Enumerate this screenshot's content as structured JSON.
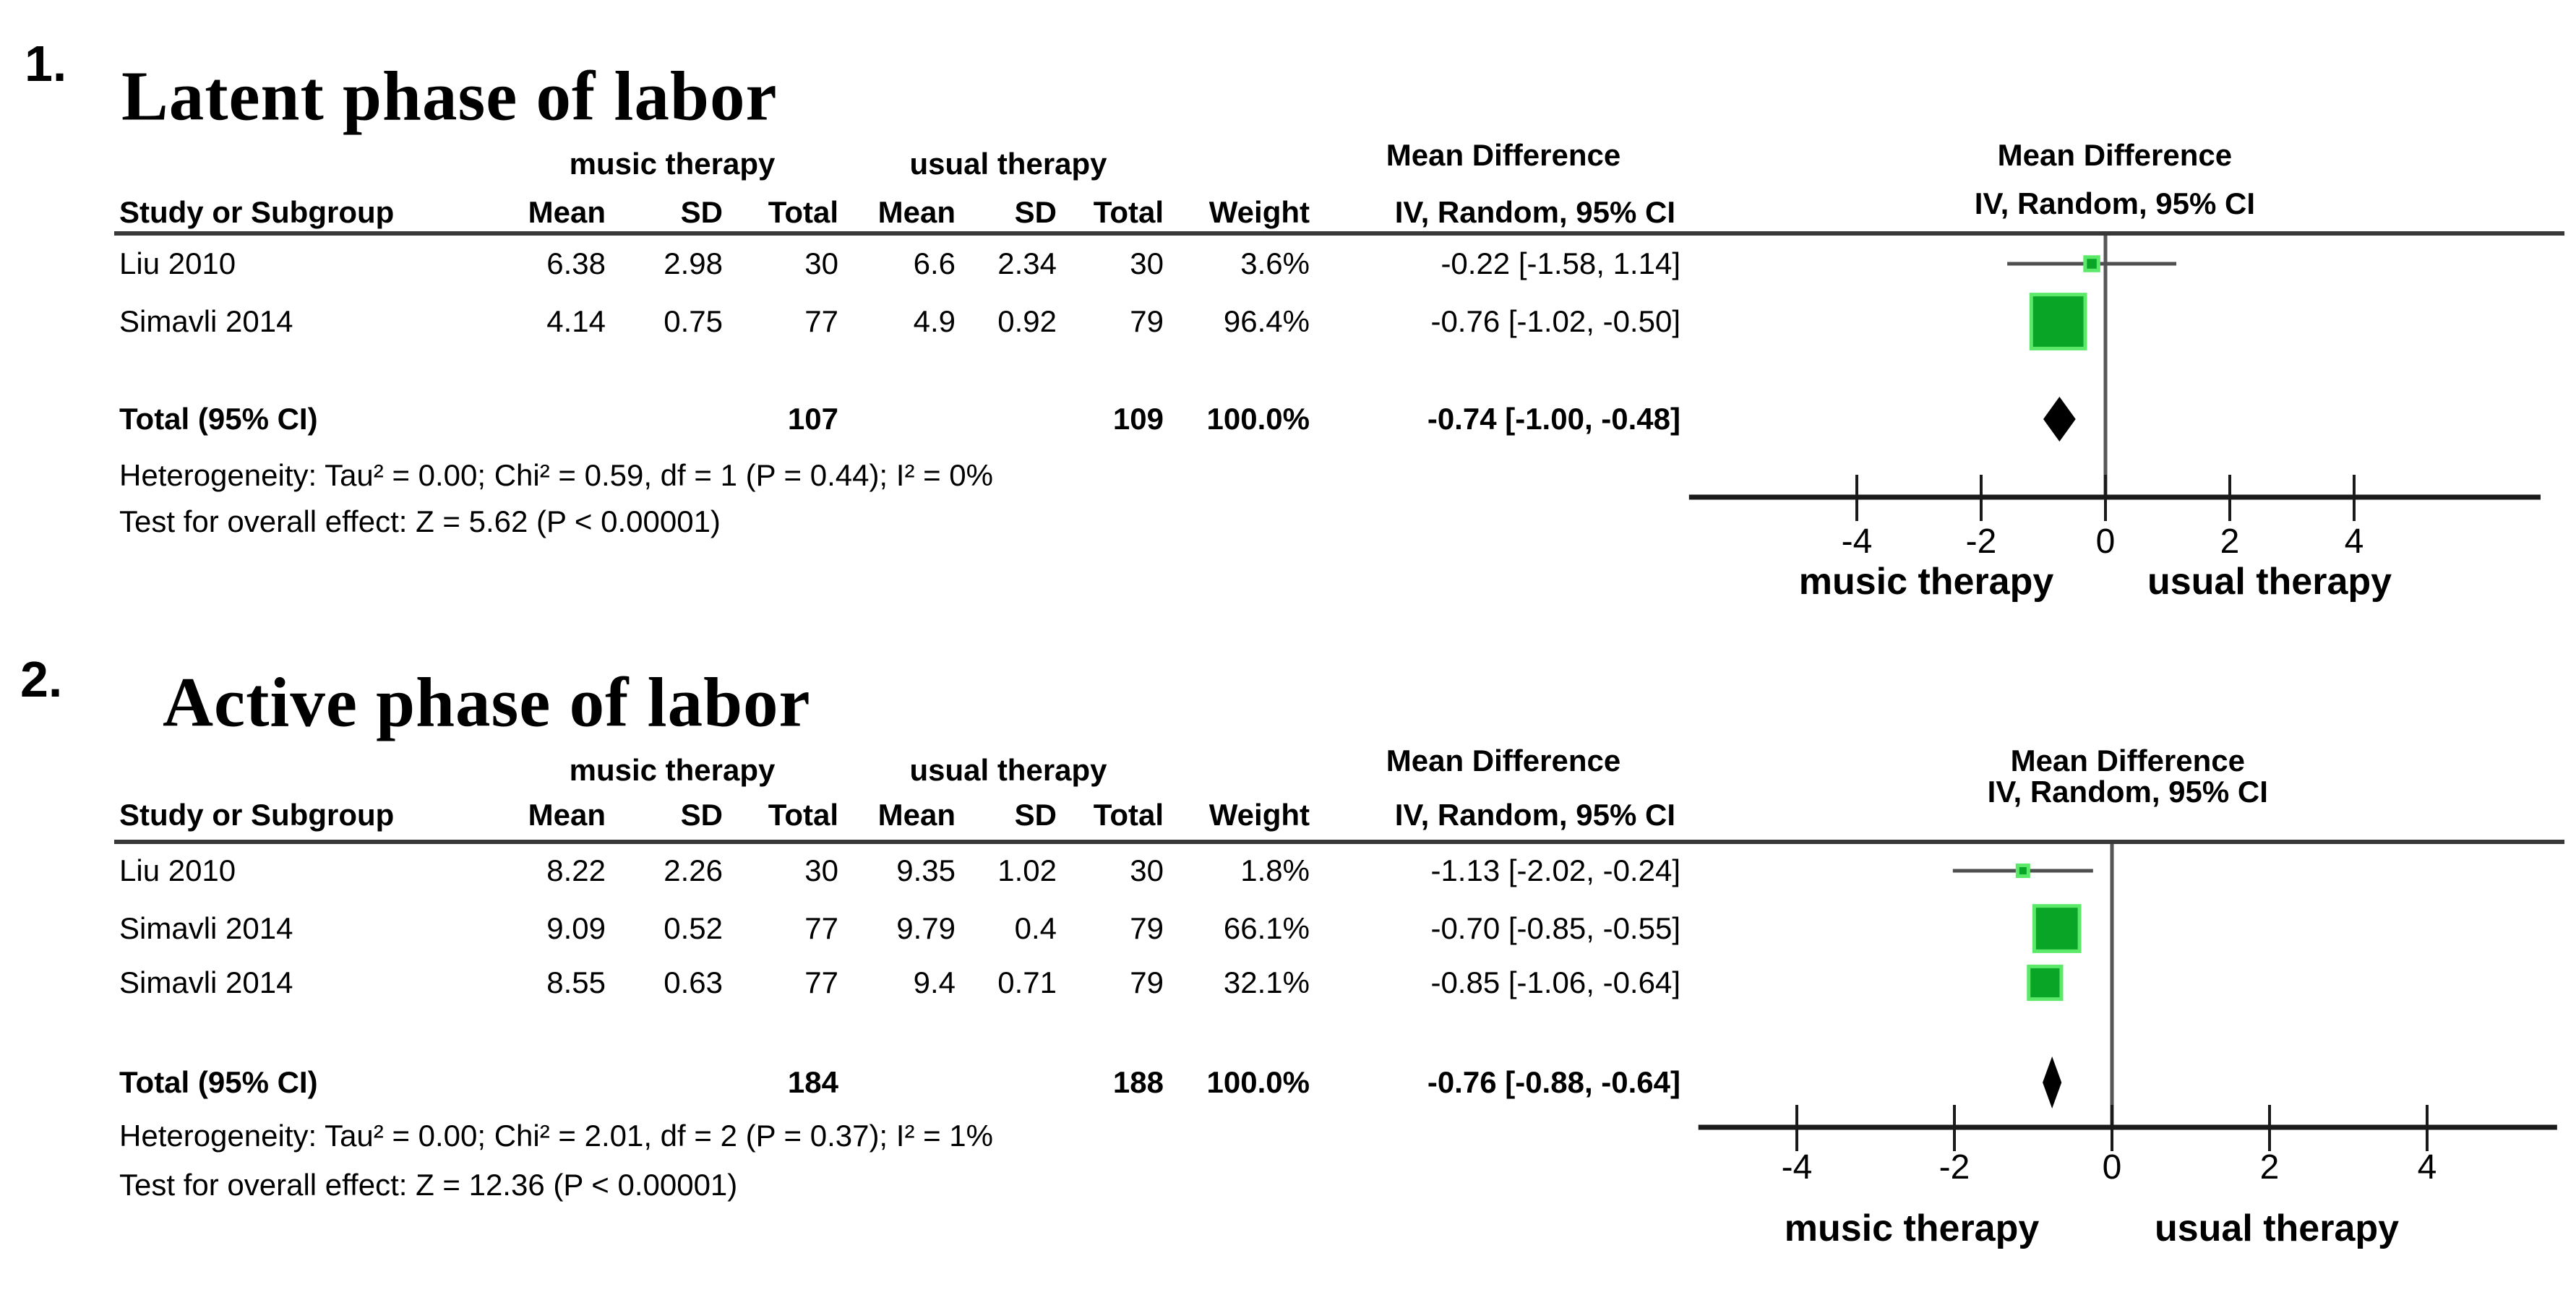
{
  "colors": {
    "background": "#ffffff",
    "text": "#000000",
    "marker_core": "#09a527",
    "marker_halo": "#5ce96a",
    "ci_line": "#4f4f4f",
    "axis_line": "#1a1a1a",
    "zero_line": "#565656",
    "separator": "#383838",
    "diamond": "#000000"
  },
  "chart_data": [
    {
      "type": "forest",
      "index_label": "1.",
      "title": "Latent phase of labor",
      "group_headers": {
        "experimental": "music therapy",
        "control": "usual therapy"
      },
      "effect_header": {
        "line1": "Mean Difference",
        "line2": "IV, Random, 95% CI"
      },
      "columns": {
        "study": "Study or Subgroup",
        "mean": "Mean",
        "sd": "SD",
        "total": "Total",
        "weight": "Weight",
        "ci": "IV, Random, 95% CI"
      },
      "studies": [
        {
          "study": "Liu 2010",
          "mean1": "6.38",
          "sd1": "2.98",
          "total1": "30",
          "mean2": "6.6",
          "sd2": "2.34",
          "total2": "30",
          "weight": "3.6%",
          "ci_text": "-0.22 [-1.58, 1.14]",
          "md": -0.22,
          "ci_low": -1.58,
          "ci_high": 1.14,
          "weight_pct": 3.6
        },
        {
          "study": "Simavli 2014",
          "mean1": "4.14",
          "sd1": "0.75",
          "total1": "77",
          "mean2": "4.9",
          "sd2": "0.92",
          "total2": "79",
          "weight": "96.4%",
          "ci_text": "-0.76 [-1.02, -0.50]",
          "md": -0.76,
          "ci_low": -1.02,
          "ci_high": -0.5,
          "weight_pct": 96.4
        }
      ],
      "total_row": {
        "label": "Total (95% CI)",
        "total1": "107",
        "total2": "109",
        "weight": "100.0%",
        "ci_text": "-0.74 [-1.00, -0.48]",
        "md": -0.74,
        "ci_low": -1.0,
        "ci_high": -0.48
      },
      "heterogeneity": "Heterogeneity: Tau² = 0.00; Chi² = 0.59, df = 1 (P = 0.44); I² = 0%",
      "overall_effect": "Test for overall effect: Z = 5.62 (P < 0.00001)",
      "axis": {
        "ticks": [
          -4,
          -2,
          0,
          2,
          4
        ],
        "xlim": [
          -6.7,
          7.0
        ],
        "label_left": "music therapy",
        "label_right": "usual therapy"
      }
    },
    {
      "type": "forest",
      "index_label": "2.",
      "title": "Active phase of labor",
      "group_headers": {
        "experimental": "music therapy",
        "control": "usual therapy"
      },
      "effect_header": {
        "line1": "Mean Difference",
        "line2": "IV, Random, 95% CI"
      },
      "columns": {
        "study": "Study or Subgroup",
        "mean": "Mean",
        "sd": "SD",
        "total": "Total",
        "weight": "Weight",
        "ci": "IV, Random, 95% CI"
      },
      "studies": [
        {
          "study": "Liu 2010",
          "mean1": "8.22",
          "sd1": "2.26",
          "total1": "30",
          "mean2": "9.35",
          "sd2": "1.02",
          "total2": "30",
          "weight": "1.8%",
          "ci_text": "-1.13 [-2.02, -0.24]",
          "md": -1.13,
          "ci_low": -2.02,
          "ci_high": -0.24,
          "weight_pct": 1.8
        },
        {
          "study": "Simavli 2014",
          "mean1": "9.09",
          "sd1": "0.52",
          "total1": "77",
          "mean2": "9.79",
          "sd2": "0.4",
          "total2": "79",
          "weight": "66.1%",
          "ci_text": "-0.70 [-0.85, -0.55]",
          "md": -0.7,
          "ci_low": -0.85,
          "ci_high": -0.55,
          "weight_pct": 66.1
        },
        {
          "study": "Simavli 2014",
          "mean1": "8.55",
          "sd1": "0.63",
          "total1": "77",
          "mean2": "9.4",
          "sd2": "0.71",
          "total2": "79",
          "weight": "32.1%",
          "ci_text": "-0.85 [-1.06, -0.64]",
          "md": -0.85,
          "ci_low": -1.06,
          "ci_high": -0.64,
          "weight_pct": 32.1
        }
      ],
      "total_row": {
        "label": "Total (95% CI)",
        "total1": "184",
        "total2": "188",
        "weight": "100.0%",
        "ci_text": "-0.76 [-0.88, -0.64]",
        "md": -0.76,
        "ci_low": -0.88,
        "ci_high": -0.64
      },
      "heterogeneity": "Heterogeneity: Tau² = 0.00; Chi² = 2.01, df = 2 (P = 0.37); I² = 1%",
      "overall_effect": "Test for overall effect: Z = 12.36 (P < 0.00001)",
      "axis": {
        "ticks": [
          -4,
          -2,
          0,
          2,
          4
        ],
        "xlim": [
          -5.25,
          5.65
        ],
        "label_left": "music therapy",
        "label_right": "usual therapy"
      }
    }
  ]
}
